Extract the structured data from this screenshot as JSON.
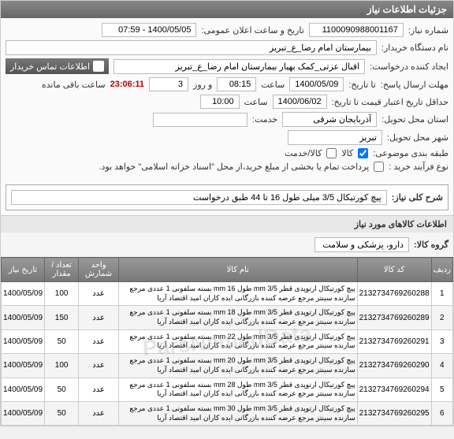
{
  "panel_title": "جزئیات اطلاعات نیاز",
  "fields": {
    "shomare_niaz_lbl": "شماره نیاز:",
    "shomare_niaz": "1100090988001167",
    "tarikh_elan_lbl": "تاریخ و ساعت اعلان عمومی:",
    "tarikh_elan": "1400/05/05 - 07:59",
    "dastgah_lbl": "نام دستگاه خریدار:",
    "dastgah": "بیمارستان امام رضا_ع_تبریز",
    "ijad_lbl": "ایجاد کننده درخواست:",
    "ijad": "اقبال عزتی_کمک بهیار بیمارستان امام رضا_ع_تبریز",
    "contact_header": "اطلاعات تماس خریدار",
    "mohlat_lbl": "مهلت ارسال پاسخ:",
    "ta_lbl": "تا تاریخ:",
    "mohlat_date": "1400/05/09",
    "saat_lbl": "ساعت",
    "mohlat_time": "08:15",
    "rooz_lbl": "و روز",
    "rooz": "3",
    "timer": "23:06:11",
    "timer_suffix": "ساعت باقی مانده",
    "etebar_lbl": "حداقل تاریخ اعتبار قیمت تا تاریخ:",
    "etebar_date": "1400/06/02",
    "etebar_time": "10:00",
    "ostan_lbl": "استان محل تحویل:",
    "ostan": "آذربایجان شرقی",
    "khadamat_lbl": "خدمت:",
    "shahr_lbl": "شهر محل تحویل:",
    "shahr": "تبریز",
    "tabaghe_lbl": "طبقه بندی موضوعی:",
    "kala_chk": "کالا",
    "khadamat_chk": "کالا/خدمت",
    "farayand_lbl": "نوع فرآیند خرید :",
    "pardakht_note": "پرداخت تمام یا بخشی از مبلغ خرید،از محل \"اسناد خزانه اسلامی\" خواهد بود."
  },
  "sharh_lbl": "شرح کلی نیاز:",
  "sharh_text": "پیچ کورتیکال 3/5 میلی طول 16 تا 44 طبق درخواست",
  "goods_title": "اطلاعات کالاهای مورد نیاز",
  "gorooh_lbl": "گروه کالا:",
  "gorooh_val": "دارو، پزشکی و سلامت",
  "watermark": "ParsNamadData",
  "table": {
    "headers": [
      "ردیف",
      "کد کالا",
      "نام کالا",
      "واحد شمارش",
      "تعداد / مقدار",
      "تاریخ نیاز"
    ],
    "rows": [
      {
        "n": "1",
        "code": "2132734769260288",
        "name": "پیچ کورتیکال ارتوپدی قطر mm 3/5 طول mm 16 بسته سلفونی 1 عددی مرجع سازنده سینتز مرجع عرضه کننده بازرگانی ایده کاران امید اقتصاد آریا",
        "unit": "عدد",
        "qty": "100",
        "date": "1400/05/09"
      },
      {
        "n": "2",
        "code": "2132734769260289",
        "name": "پیچ کورتیکال ارتوپدی قطر mm 3/5 طول mm 18 بسته سلفونی 1 عددی مرجع سازنده سینتز مرجع عرضه کننده بازرگانی ایده کاران امید اقتصاد آریا",
        "unit": "عدد",
        "qty": "150",
        "date": "1400/05/09"
      },
      {
        "n": "3",
        "code": "2132734769260291",
        "name": "پیچ کورتیکال ارتوپدی قطر mm 3/5 طول mm 22 بسته سلفونی 1 عددی مرجع سازنده سینتز مرجع عرضه کننده بازرگانی ایده کاران امید اقتصاد آریا",
        "unit": "عدد",
        "qty": "50",
        "date": "1400/05/09"
      },
      {
        "n": "4",
        "code": "2132734769260290",
        "name": "پیچ کورتیکال ارتوپدی قطر mm 3/5 طول mm 20 بسته سلفونی 1 عددی مرجع سازنده سینتز مرجع عرضه کننده بازرگانی ایده کاران امید اقتصاد آریا",
        "unit": "عدد",
        "qty": "100",
        "date": "1400/05/09"
      },
      {
        "n": "5",
        "code": "2132734769260294",
        "name": "پیچ کورتیکال ارتوپدی قطر mm 3/5 طول mm 28 بسته سلفونی 1 عددی مرجع سازنده سینتز مرجع عرضه کننده بازرگانی ایده کاران امید اقتصاد آریا",
        "unit": "عدد",
        "qty": "50",
        "date": "1400/05/09"
      },
      {
        "n": "6",
        "code": "2132734769260295",
        "name": "پیچ کورتیکال ارتوپدی قطر mm 3/5 طول mm 30 بسته سلفونی 1 عددی مرجع سازنده سینتز مرجع عرضه کننده بازرگانی ایده کاران امید اقتصاد آریا",
        "unit": "عدد",
        "qty": "50",
        "date": "1400/05/09"
      }
    ]
  }
}
